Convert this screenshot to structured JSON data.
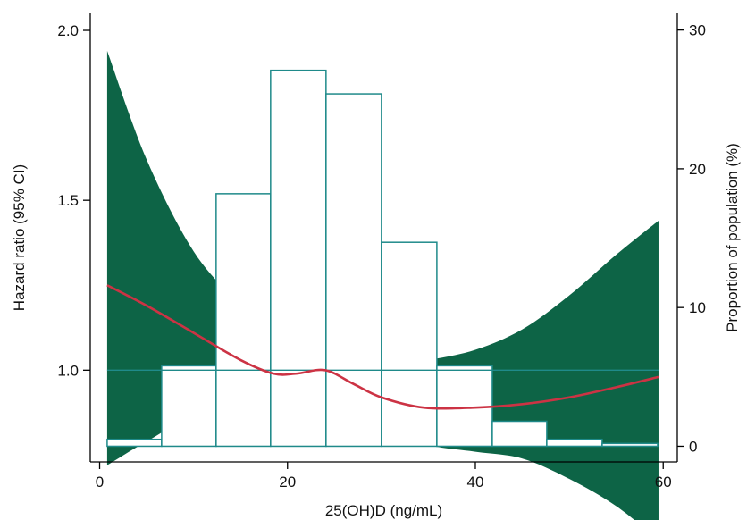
{
  "chart_data": {
    "type": "line",
    "title": "",
    "xlabel": "25(OH)D (ng/mL)",
    "ylabel": "Hazard ratio (95% CI)",
    "y2label": "Proportion of population (%)",
    "xlim": [
      -1,
      61.5
    ],
    "ylim": [
      0.73,
      2.05
    ],
    "y2lim": [
      -1.13,
      31.2
    ],
    "xticks": [
      0,
      20,
      40,
      60
    ],
    "xtick_labels": [
      "0",
      "20",
      "40",
      "60"
    ],
    "yticks": [
      1.0,
      1.5,
      2.0
    ],
    "ytick_labels": [
      "1.0",
      "1.5",
      "2.0"
    ],
    "y2ticks": [
      0,
      10,
      20,
      30
    ],
    "y2tick_labels": [
      "0",
      "10",
      "20",
      "30"
    ],
    "reference_line": 1.0,
    "grid": false,
    "colors": {
      "hazard_line": "#cc3344",
      "ci_band": "#0d6446",
      "reference": "#1f8a8a",
      "histogram": "#1f8a8a"
    },
    "series": [
      {
        "type": "line",
        "x": [
          0.8,
          5,
          10,
          15,
          18.5,
          21,
          24,
          27,
          30,
          34.5,
          40,
          45,
          50,
          55,
          59.5
        ],
        "y": [
          1.25,
          1.19,
          1.11,
          1.03,
          0.99,
          0.99,
          1.0,
          0.96,
          0.92,
          0.89,
          0.89,
          0.9,
          0.92,
          0.95,
          0.98
        ]
      },
      {
        "type": "area",
        "x": [
          0.8,
          5,
          10,
          15,
          18,
          21,
          24,
          27,
          30,
          35,
          40,
          45,
          50,
          55,
          59.5
        ],
        "upper": [
          1.94,
          1.62,
          1.35,
          1.19,
          1.11,
          1.05,
          1.0,
          0.99,
          1.01,
          1.03,
          1.06,
          1.12,
          1.22,
          1.34,
          1.44
        ],
        "lower": [
          0.72,
          0.79,
          0.86,
          0.85,
          0.83,
          0.92,
          1.0,
          0.95,
          0.83,
          0.78,
          0.76,
          0.74,
          0.68,
          0.6,
          0.5
        ]
      },
      {
        "type": "histogram",
        "bins": [
          {
            "x0": 0.8,
            "x1": 6.6,
            "value": 0.5
          },
          {
            "x0": 6.6,
            "x1": 12.4,
            "value": 5.8
          },
          {
            "x0": 12.4,
            "x1": 18.2,
            "value": 18.2
          },
          {
            "x0": 18.2,
            "x1": 24.1,
            "value": 27.1
          },
          {
            "x0": 24.1,
            "x1": 30,
            "value": 25.4
          },
          {
            "x0": 30,
            "x1": 35.9,
            "value": 14.7
          },
          {
            "x0": 35.9,
            "x1": 41.8,
            "value": 5.8
          },
          {
            "x0": 41.8,
            "x1": 47.6,
            "value": 1.8
          },
          {
            "x0": 47.6,
            "x1": 53.5,
            "value": 0.5
          },
          {
            "x0": 53.5,
            "x1": 59.4,
            "value": 0.2
          }
        ]
      }
    ]
  }
}
